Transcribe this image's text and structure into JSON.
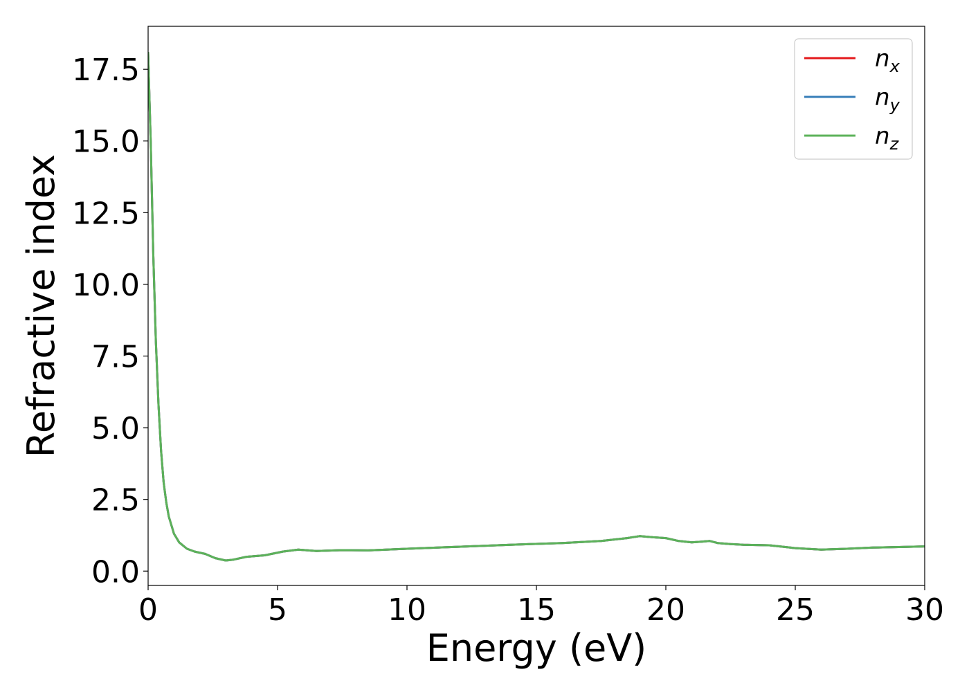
{
  "chart_data": {
    "type": "line",
    "title": "",
    "xlabel": "Energy (eV)",
    "ylabel": "Refractive index",
    "xlim": [
      0,
      30
    ],
    "ylim": [
      -0.5,
      19.0
    ],
    "xticks": [
      0,
      5,
      10,
      15,
      20,
      25,
      30
    ],
    "xtick_labels": [
      "0",
      "5",
      "10",
      "15",
      "20",
      "25",
      "30"
    ],
    "yticks": [
      0.0,
      2.5,
      5.0,
      7.5,
      10.0,
      12.5,
      15.0,
      17.5
    ],
    "ytick_labels": [
      "0.0",
      "2.5",
      "5.0",
      "7.5",
      "10.0",
      "12.5",
      "15.0",
      "17.5"
    ],
    "grid": false,
    "legend_position": "top-right",
    "series": [
      {
        "name": "n_x",
        "label_base": "n",
        "label_sub": "x",
        "color": "#e41a1c",
        "x": [
          0.0,
          0.1,
          0.2,
          0.3,
          0.4,
          0.5,
          0.6,
          0.7,
          0.8,
          1.0,
          1.2,
          1.5,
          1.8,
          2.2,
          2.6,
          3.0,
          3.3,
          3.8,
          4.5,
          5.2,
          5.8,
          6.5,
          7.5,
          8.5,
          10.0,
          12.0,
          14.0,
          16.0,
          17.5,
          18.5,
          19.0,
          19.5,
          20.0,
          20.5,
          21.0,
          21.7,
          22.0,
          22.5,
          23.0,
          24.0,
          25.0,
          26.0,
          27.0,
          28.0,
          29.0,
          30.0
        ],
        "y": [
          18.1,
          15.0,
          11.0,
          8.0,
          5.8,
          4.2,
          3.1,
          2.4,
          1.9,
          1.3,
          1.0,
          0.78,
          0.68,
          0.6,
          0.45,
          0.37,
          0.4,
          0.5,
          0.55,
          0.68,
          0.75,
          0.7,
          0.73,
          0.72,
          0.78,
          0.85,
          0.92,
          0.98,
          1.05,
          1.15,
          1.22,
          1.18,
          1.15,
          1.05,
          1.0,
          1.05,
          0.98,
          0.94,
          0.92,
          0.9,
          0.8,
          0.75,
          0.78,
          0.82,
          0.84,
          0.86
        ]
      },
      {
        "name": "n_y",
        "label_base": "n",
        "label_sub": "y",
        "color": "#377eb8",
        "x": [
          0.0,
          0.1,
          0.2,
          0.3,
          0.4,
          0.5,
          0.6,
          0.7,
          0.8,
          1.0,
          1.2,
          1.5,
          1.8,
          2.2,
          2.6,
          3.0,
          3.3,
          3.8,
          4.5,
          5.2,
          5.8,
          6.5,
          7.5,
          8.5,
          10.0,
          12.0,
          14.0,
          16.0,
          17.5,
          18.5,
          19.0,
          19.5,
          20.0,
          20.5,
          21.0,
          21.7,
          22.0,
          22.5,
          23.0,
          24.0,
          25.0,
          26.0,
          27.0,
          28.0,
          29.0,
          30.0
        ],
        "y": [
          18.1,
          15.0,
          11.0,
          8.0,
          5.8,
          4.2,
          3.1,
          2.4,
          1.9,
          1.3,
          1.0,
          0.78,
          0.68,
          0.6,
          0.45,
          0.37,
          0.4,
          0.5,
          0.55,
          0.68,
          0.75,
          0.7,
          0.73,
          0.72,
          0.78,
          0.85,
          0.92,
          0.98,
          1.05,
          1.15,
          1.22,
          1.18,
          1.15,
          1.05,
          1.0,
          1.05,
          0.98,
          0.94,
          0.92,
          0.9,
          0.8,
          0.75,
          0.78,
          0.82,
          0.84,
          0.86
        ]
      },
      {
        "name": "n_z",
        "label_base": "n",
        "label_sub": "z",
        "color": "#5cb25a",
        "x": [
          0.0,
          0.1,
          0.2,
          0.3,
          0.4,
          0.5,
          0.6,
          0.7,
          0.8,
          1.0,
          1.2,
          1.5,
          1.8,
          2.2,
          2.6,
          3.0,
          3.3,
          3.8,
          4.5,
          5.2,
          5.8,
          6.5,
          7.5,
          8.5,
          10.0,
          12.0,
          14.0,
          16.0,
          17.5,
          18.5,
          19.0,
          19.5,
          20.0,
          20.5,
          21.0,
          21.7,
          22.0,
          22.5,
          23.0,
          24.0,
          25.0,
          26.0,
          27.0,
          28.0,
          29.0,
          30.0
        ],
        "y": [
          18.1,
          15.0,
          11.0,
          8.0,
          5.8,
          4.2,
          3.1,
          2.4,
          1.9,
          1.3,
          1.0,
          0.78,
          0.68,
          0.6,
          0.45,
          0.37,
          0.4,
          0.5,
          0.55,
          0.68,
          0.75,
          0.7,
          0.73,
          0.72,
          0.78,
          0.85,
          0.92,
          0.98,
          1.05,
          1.15,
          1.22,
          1.18,
          1.15,
          1.05,
          1.0,
          1.05,
          0.98,
          0.94,
          0.92,
          0.9,
          0.8,
          0.75,
          0.78,
          0.82,
          0.84,
          0.86
        ]
      }
    ]
  }
}
